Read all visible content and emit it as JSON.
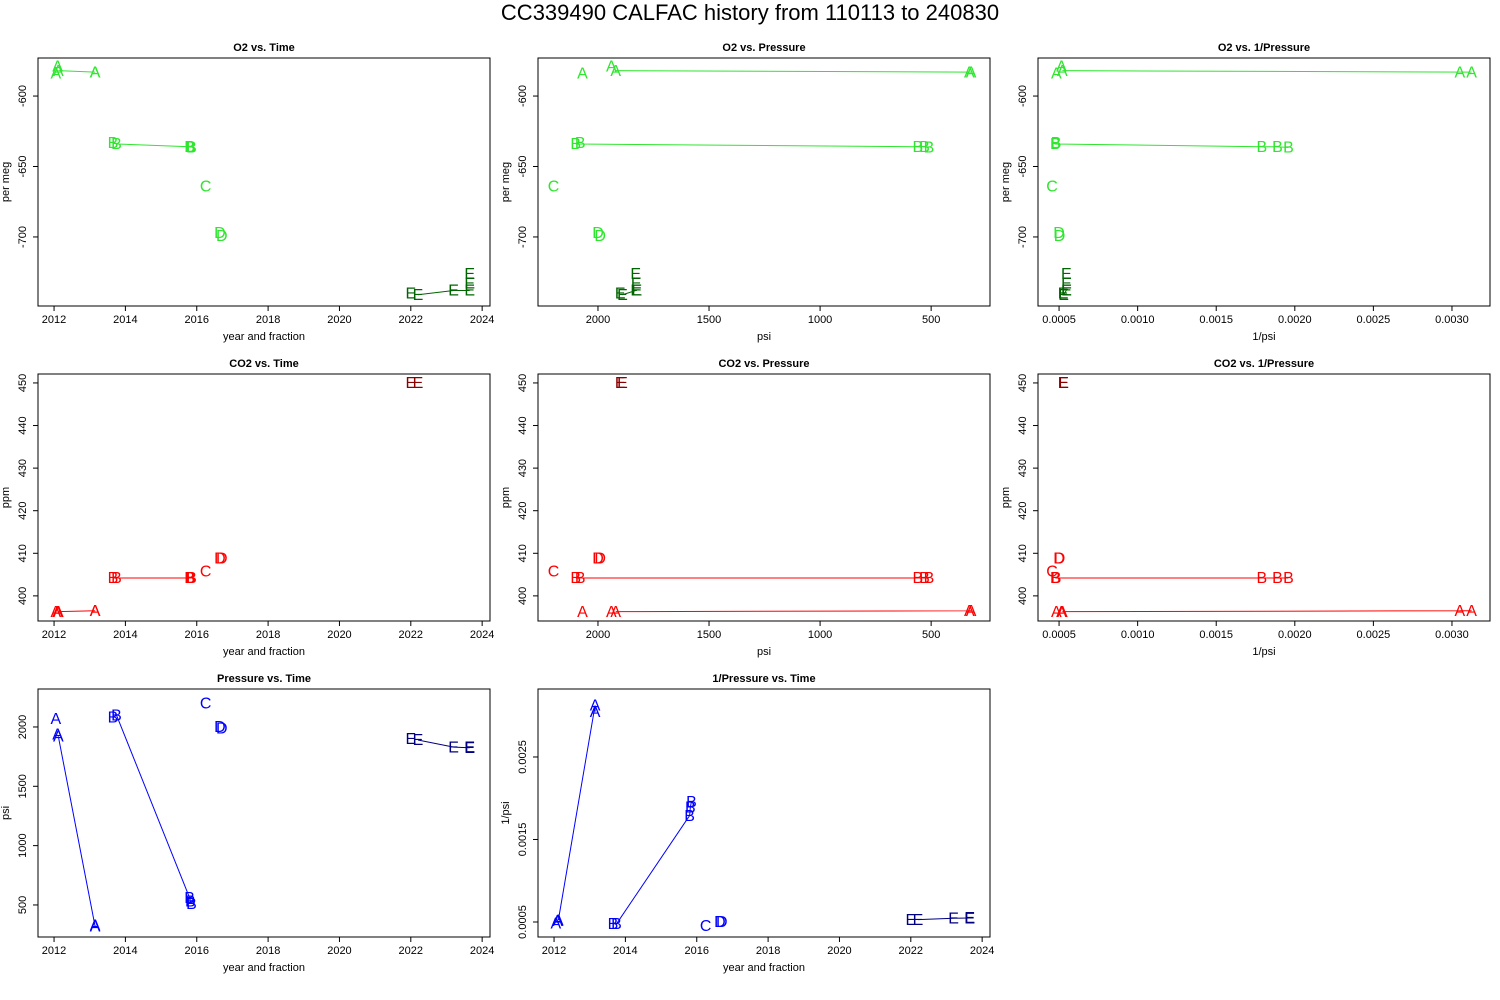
{
  "title": "CC339490   CALFAC history from  110113  to  240830",
  "chart_data": [
    {
      "type": "scatter",
      "title": "O2 vs. Time",
      "xlabel": "year and fraction",
      "ylabel": "per meg",
      "xlim": [
        2011.55,
        2024.22
      ],
      "ylim": [
        -749,
        -573
      ],
      "xticks": [
        2012,
        2014,
        2016,
        2018,
        2020,
        2022,
        2024
      ],
      "yticks": [
        -600,
        -650,
        -700
      ],
      "series": [
        {
          "marker": "A",
          "color": "#2ee62e",
          "line": false,
          "x": [
            2012.05,
            2012.1
          ],
          "values": [
            -584,
            -579
          ]
        },
        {
          "marker": "A",
          "color": "#2ee62e",
          "line": true,
          "x": [
            2012.12,
            2013.15,
            2013.15
          ],
          "values": [
            -582,
            -583,
            -583
          ]
        },
        {
          "marker": "B",
          "color": "#2ee62e",
          "line": true,
          "x": [
            2013.65,
            2013.75,
            2015.8,
            2015.82,
            2015.85
          ],
          "values": [
            -633,
            -634,
            -636,
            -636,
            -636.5
          ]
        },
        {
          "marker": "C",
          "color": "#2ee62e",
          "line": false,
          "x": [
            2016.25
          ],
          "values": [
            -664
          ]
        },
        {
          "marker": "D",
          "color": "#2ee62e",
          "line": false,
          "x": [
            2016.65,
            2016.7
          ],
          "values": [
            -697,
            -699
          ]
        },
        {
          "marker": "E",
          "color": "#006400",
          "line": false,
          "x": [
            2022.0,
            2023.65,
            2023.65
          ],
          "values": [
            -740,
            -726,
            -733
          ]
        },
        {
          "marker": "E",
          "color": "#006400",
          "line": true,
          "x": [
            2022.2,
            2023.2,
            2023.65
          ],
          "values": [
            -741,
            -738,
            -738
          ]
        }
      ]
    },
    {
      "type": "scatter",
      "title": "O2 vs. Pressure",
      "xlabel": "psi",
      "ylabel": "per meg",
      "xlim": [
        2270,
        235
      ],
      "ylim": [
        -749,
        -573
      ],
      "xticks": [
        2000,
        1500,
        1000,
        500
      ],
      "yticks": [
        -600,
        -650,
        -700
      ],
      "series": [
        {
          "marker": "A",
          "color": "#2ee62e",
          "line": false,
          "x": [
            2070,
            1940
          ],
          "values": [
            -584,
            -579
          ]
        },
        {
          "marker": "A",
          "color": "#2ee62e",
          "line": true,
          "x": [
            1920,
            320,
            328
          ],
          "values": [
            -582,
            -583,
            -583
          ]
        },
        {
          "marker": "B",
          "color": "#2ee62e",
          "line": true,
          "x": [
            2080,
            2100,
            560,
            530,
            510
          ],
          "values": [
            -633,
            -634,
            -636,
            -636,
            -636.5
          ]
        },
        {
          "marker": "C",
          "color": "#2ee62e",
          "line": false,
          "x": [
            2200
          ],
          "values": [
            -664
          ]
        },
        {
          "marker": "D",
          "color": "#2ee62e",
          "line": false,
          "x": [
            2000,
            1990
          ],
          "values": [
            -697,
            -699
          ]
        },
        {
          "marker": "E",
          "color": "#006400",
          "line": false,
          "x": [
            1900,
            1830,
            1828
          ],
          "values": [
            -740,
            -726,
            -733
          ]
        },
        {
          "marker": "E",
          "color": "#006400",
          "line": true,
          "x": [
            1890,
            1830,
            1825
          ],
          "values": [
            -741,
            -738,
            -738
          ]
        }
      ]
    },
    {
      "type": "scatter",
      "title": "O2 vs. 1/Pressure",
      "xlabel": "1/psi",
      "ylabel": "per meg",
      "xlim": [
        0.000366,
        0.003242
      ],
      "ylim": [
        -749,
        -573
      ],
      "xticks": [
        0.0005,
        {
          "value": 0.001,
          "label": "0.0010"
        },
        0.0015,
        {
          "value": 0.002,
          "label": "0.0020"
        },
        0.0025,
        {
          "value": 0.003,
          "label": "0.0030"
        }
      ],
      "yticks": [
        -600,
        -650,
        -700
      ],
      "series": [
        {
          "marker": "A",
          "color": "#2ee62e",
          "line": false,
          "x": [
            0.000483,
            0.000515
          ],
          "values": [
            -584,
            -579
          ]
        },
        {
          "marker": "A",
          "color": "#2ee62e",
          "line": true,
          "x": [
            0.000521,
            0.003125,
            0.00305
          ],
          "values": [
            -582,
            -583,
            -583
          ]
        },
        {
          "marker": "B",
          "color": "#2ee62e",
          "line": true,
          "x": [
            0.000481,
            0.000476,
            0.00179,
            0.00189,
            0.00196
          ],
          "values": [
            -633,
            -634,
            -636,
            -636,
            -636.5
          ]
        },
        {
          "marker": "C",
          "color": "#2ee62e",
          "line": false,
          "x": [
            0.000455
          ],
          "values": [
            -664
          ]
        },
        {
          "marker": "D",
          "color": "#2ee62e",
          "line": false,
          "x": [
            0.0005,
            0.000503
          ],
          "values": [
            -697,
            -699
          ]
        },
        {
          "marker": "E",
          "color": "#006400",
          "line": false,
          "x": [
            0.000526,
            0.000546,
            0.000547
          ],
          "values": [
            -740,
            -726,
            -733
          ]
        },
        {
          "marker": "E",
          "color": "#006400",
          "line": true,
          "x": [
            0.000529,
            0.000546,
            0.000548
          ],
          "values": [
            -741,
            -738,
            -738
          ]
        }
      ]
    },
    {
      "type": "scatter",
      "title": "CO2 vs. Time",
      "xlabel": "year and fraction",
      "ylabel": "ppm",
      "xlim": [
        2011.55,
        2024.22
      ],
      "ylim": [
        394.1,
        452.1
      ],
      "xticks": [
        2012,
        2014,
        2016,
        2018,
        2020,
        2022,
        2024
      ],
      "yticks": [
        400,
        410,
        420,
        430,
        440,
        450
      ],
      "series": [
        {
          "marker": "A",
          "color": "#ff0000",
          "line": false,
          "x": [
            2012.05,
            2012.1
          ],
          "values": [
            396.3,
            396.3
          ]
        },
        {
          "marker": "A",
          "color": "#ff0000",
          "line": true,
          "x": [
            2012.12,
            2013.15,
            2013.15
          ],
          "values": [
            396.3,
            396.5,
            396.5
          ]
        },
        {
          "marker": "B",
          "color": "#ff0000",
          "line": true,
          "x": [
            2013.65,
            2013.75,
            2015.8,
            2015.82,
            2015.85
          ],
          "values": [
            404.2,
            404.2,
            404.2,
            404.2,
            404.2
          ]
        },
        {
          "marker": "C",
          "color": "#ff0000",
          "line": false,
          "x": [
            2016.25
          ],
          "values": [
            405.8
          ]
        },
        {
          "marker": "D",
          "color": "#ff0000",
          "line": false,
          "x": [
            2016.65,
            2016.7
          ],
          "values": [
            408.8,
            408.8
          ]
        },
        {
          "marker": "E",
          "color": "#8b0000",
          "line": false,
          "x": [
            2022.0,
            2022.2
          ],
          "values": [
            450,
            450
          ]
        }
      ]
    },
    {
      "type": "scatter",
      "title": "CO2 vs. Pressure",
      "xlabel": "psi",
      "ylabel": "ppm",
      "xlim": [
        2270,
        235
      ],
      "ylim": [
        394.1,
        452.1
      ],
      "xticks": [
        2000,
        1500,
        1000,
        500
      ],
      "yticks": [
        400,
        410,
        420,
        430,
        440,
        450
      ],
      "series": [
        {
          "marker": "A",
          "color": "#ff0000",
          "line": false,
          "x": [
            2070,
            1940
          ],
          "values": [
            396.3,
            396.3
          ]
        },
        {
          "marker": "A",
          "color": "#ff0000",
          "line": true,
          "x": [
            1920,
            320,
            328
          ],
          "values": [
            396.3,
            396.5,
            396.5
          ]
        },
        {
          "marker": "B",
          "color": "#ff0000",
          "line": true,
          "x": [
            2080,
            2100,
            560,
            530,
            510
          ],
          "values": [
            404.2,
            404.2,
            404.2,
            404.2,
            404.2
          ]
        },
        {
          "marker": "C",
          "color": "#ff0000",
          "line": false,
          "x": [
            2200
          ],
          "values": [
            405.8
          ]
        },
        {
          "marker": "D",
          "color": "#ff0000",
          "line": false,
          "x": [
            2000,
            1990
          ],
          "values": [
            408.8,
            408.8
          ]
        },
        {
          "marker": "E",
          "color": "#8b0000",
          "line": false,
          "x": [
            1900,
            1890
          ],
          "values": [
            450,
            450
          ]
        }
      ]
    },
    {
      "type": "scatter",
      "title": "CO2 vs. 1/Pressure",
      "xlabel": "1/psi",
      "ylabel": "ppm",
      "xlim": [
        0.000366,
        0.003242
      ],
      "ylim": [
        394.1,
        452.1
      ],
      "xticks": [
        0.0005,
        {
          "value": 0.001,
          "label": "0.0010"
        },
        0.0015,
        {
          "value": 0.002,
          "label": "0.0020"
        },
        0.0025,
        {
          "value": 0.003,
          "label": "0.0030"
        }
      ],
      "yticks": [
        400,
        410,
        420,
        430,
        440,
        450
      ],
      "series": [
        {
          "marker": "A",
          "color": "#ff0000",
          "line": false,
          "x": [
            0.000483,
            0.000515
          ],
          "values": [
            396.3,
            396.3
          ]
        },
        {
          "marker": "A",
          "color": "#ff0000",
          "line": true,
          "x": [
            0.000521,
            0.003125,
            0.00305
          ],
          "values": [
            396.3,
            396.5,
            396.5
          ]
        },
        {
          "marker": "B",
          "color": "#ff0000",
          "line": true,
          "x": [
            0.000481,
            0.000476,
            0.00179,
            0.00189,
            0.00196
          ],
          "values": [
            404.2,
            404.2,
            404.2,
            404.2,
            404.2
          ]
        },
        {
          "marker": "C",
          "color": "#ff0000",
          "line": false,
          "x": [
            0.000455
          ],
          "values": [
            405.8
          ]
        },
        {
          "marker": "D",
          "color": "#ff0000",
          "line": false,
          "x": [
            0.0005,
            0.000503
          ],
          "values": [
            408.8,
            408.8
          ]
        },
        {
          "marker": "E",
          "color": "#8b0000",
          "line": false,
          "x": [
            0.000526,
            0.000529
          ],
          "values": [
            450,
            450
          ]
        }
      ]
    },
    {
      "type": "scatter",
      "title": "Pressure vs. Time",
      "xlabel": "year and fraction",
      "ylabel": "psi",
      "xlim": [
        2011.55,
        2024.22
      ],
      "ylim": [
        230,
        2320
      ],
      "xticks": [
        2012,
        2014,
        2016,
        2018,
        2020,
        2022,
        2024
      ],
      "yticks": [
        500,
        1000,
        1500,
        2000
      ],
      "series": [
        {
          "marker": "A",
          "color": "#0000ff",
          "line": false,
          "x": [
            2012.05,
            2012.1
          ],
          "values": [
            2070,
            1940
          ]
        },
        {
          "marker": "A",
          "color": "#0000ff",
          "line": true,
          "x": [
            2012.12,
            2013.15,
            2013.15
          ],
          "values": [
            1920,
            320,
            328
          ]
        },
        {
          "marker": "B",
          "color": "#0000ff",
          "line": true,
          "x": [
            2013.65,
            2013.75,
            2015.8,
            2015.82,
            2015.85
          ],
          "values": [
            2080,
            2100,
            560,
            530,
            510
          ]
        },
        {
          "marker": "C",
          "color": "#0000ff",
          "line": false,
          "x": [
            2016.25
          ],
          "values": [
            2200
          ]
        },
        {
          "marker": "D",
          "color": "#0000ff",
          "line": false,
          "x": [
            2016.65,
            2016.7
          ],
          "values": [
            2000,
            1990
          ]
        },
        {
          "marker": "E",
          "color": "#000080",
          "line": false,
          "x": [
            2022.0,
            2023.65,
            2023.65
          ],
          "values": [
            1900,
            1830,
            1828
          ]
        },
        {
          "marker": "E",
          "color": "#000080",
          "line": true,
          "x": [
            2022.2,
            2023.2,
            2023.65
          ],
          "values": [
            1890,
            1830,
            1825
          ]
        }
      ]
    },
    {
      "type": "scatter",
      "title": "1/Pressure vs. Time",
      "xlabel": "year and fraction",
      "ylabel": "1/psi",
      "xlim": [
        2011.55,
        2024.22
      ],
      "ylim": [
        0.000318,
        0.003324
      ],
      "xticks": [
        2012,
        2014,
        2016,
        2018,
        2020,
        2022,
        2024
      ],
      "yticks": [
        0.0005,
        0.0015,
        0.0025
      ],
      "series": [
        {
          "marker": "A",
          "color": "#0000ff",
          "line": false,
          "x": [
            2012.05,
            2012.1
          ],
          "values": [
            0.000483,
            0.000515
          ]
        },
        {
          "marker": "A",
          "color": "#0000ff",
          "line": true,
          "x": [
            2012.12,
            2013.15,
            2013.15
          ],
          "values": [
            0.000521,
            0.003125,
            0.00305
          ]
        },
        {
          "marker": "B",
          "color": "#0000ff",
          "line": true,
          "x": [
            2013.65,
            2013.75,
            2015.8,
            2015.82,
            2015.85
          ],
          "values": [
            0.000481,
            0.000476,
            0.00179,
            0.00189,
            0.00196
          ]
        },
        {
          "marker": "C",
          "color": "#0000ff",
          "line": false,
          "x": [
            2016.25
          ],
          "values": [
            0.000455
          ]
        },
        {
          "marker": "D",
          "color": "#0000ff",
          "line": false,
          "x": [
            2016.65,
            2016.7
          ],
          "values": [
            0.0005,
            0.000503
          ]
        },
        {
          "marker": "E",
          "color": "#000080",
          "line": false,
          "x": [
            2022.0,
            2023.65,
            2023.65
          ],
          "values": [
            0.000526,
            0.000546,
            0.000547
          ]
        },
        {
          "marker": "E",
          "color": "#000080",
          "line": true,
          "x": [
            2022.2,
            2023.2,
            2023.65
          ],
          "values": [
            0.000529,
            0.000546,
            0.000548
          ]
        }
      ]
    }
  ]
}
